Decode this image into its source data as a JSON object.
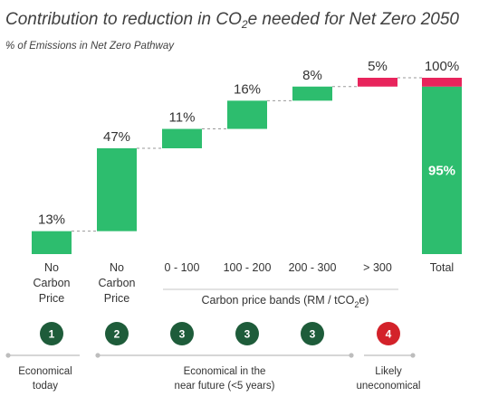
{
  "chart_data": {
    "type": "bar",
    "title_prefix": "Contribution to reduction in CO",
    "title_sub": "2",
    "title_suffix": "e needed for Net Zero 2050",
    "subtitle": "% of Emissions in Net Zero Pathway",
    "ylim": [
      0,
      100
    ],
    "steps": [
      {
        "category": [
          "No",
          "Carbon",
          "Price"
        ],
        "value": 13,
        "label": "13%",
        "color": "#2dbd6e"
      },
      {
        "category": [
          "No",
          "Carbon",
          "Price"
        ],
        "value": 47,
        "label": "47%",
        "color": "#2dbd6e"
      },
      {
        "category": [
          "0 - 100"
        ],
        "value": 11,
        "label": "11%",
        "color": "#2dbd6e"
      },
      {
        "category": [
          "100 - 200"
        ],
        "value": 16,
        "label": "16%",
        "color": "#2dbd6e"
      },
      {
        "category": [
          "200 - 300"
        ],
        "value": 8,
        "label": "8%",
        "color": "#2dbd6e"
      },
      {
        "category": [
          "> 300"
        ],
        "value": 5,
        "label": "5%",
        "color": "#e8245c"
      }
    ],
    "total": {
      "category": [
        "Total"
      ],
      "label": "100%",
      "segments": [
        {
          "value": 95,
          "label": "95%",
          "color": "#2dbd6e"
        },
        {
          "value": 5,
          "label": "",
          "color": "#e8245c"
        }
      ]
    },
    "band_label_prefix": "Carbon price bands (RM / tCO",
    "band_label_sub": "2",
    "band_label_suffix": "e)",
    "badges": [
      {
        "number": "1",
        "color": "#1e5c3a"
      },
      {
        "number": "2",
        "color": "#1e5c3a"
      },
      {
        "number": "3",
        "color": "#1e5c3a"
      },
      {
        "number": "3",
        "color": "#1e5c3a"
      },
      {
        "number": "3",
        "color": "#1e5c3a"
      },
      {
        "number": "4",
        "color": "#d3222a"
      }
    ],
    "stages": [
      {
        "lines": [
          "Economical",
          "today"
        ]
      },
      {
        "lines": [
          "Economical in the",
          "near future (<5 years)"
        ]
      },
      {
        "lines": [
          "Likely",
          "uneconomical"
        ]
      }
    ]
  }
}
